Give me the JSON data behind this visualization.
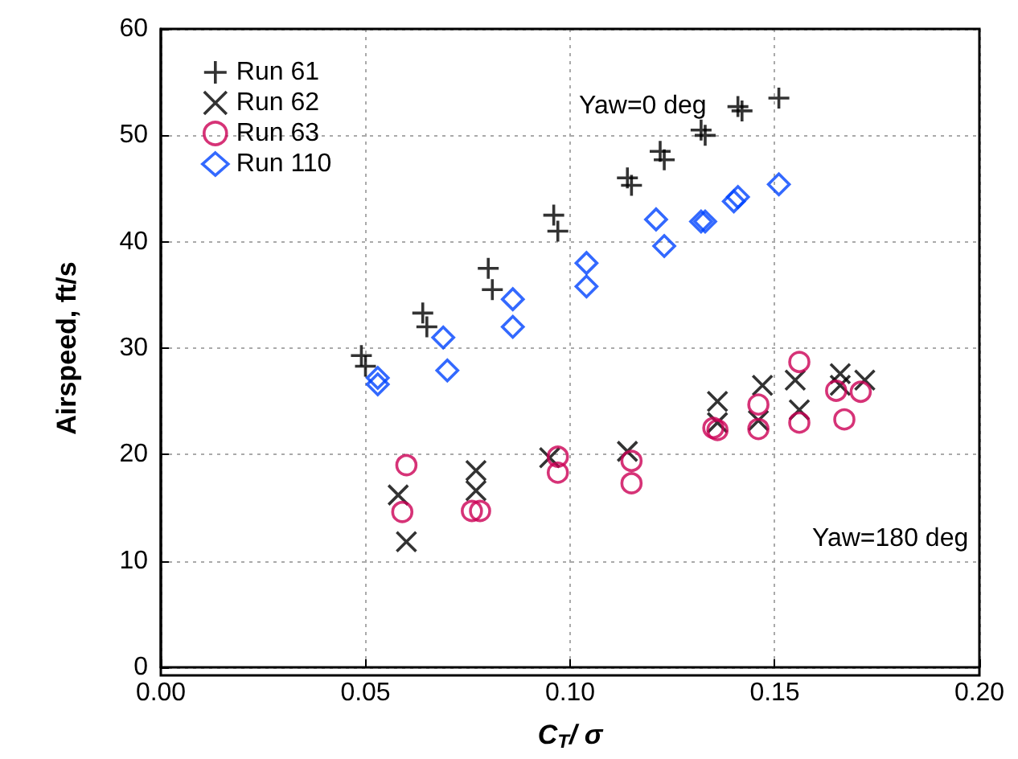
{
  "chart_data": {
    "type": "scatter",
    "xlabel": "C$_{T}$/ σ",
    "ylabel": "Airspeed, ft/s",
    "xlim": [
      0,
      0.2
    ],
    "xticks": [
      {
        "value": 0,
        "label": "0.00"
      },
      {
        "value": 0.05,
        "label": "0.05"
      },
      {
        "value": 0.1,
        "label": "0.10"
      },
      {
        "value": 0.15,
        "label": "0.15"
      },
      {
        "value": 0.2,
        "label": "0.20"
      }
    ],
    "ylim": [
      0,
      60
    ],
    "yticks": [
      0,
      10,
      20,
      30,
      40,
      50,
      60
    ],
    "grid": true,
    "legend": "top left",
    "annotations": [
      "Yaw=0 deg",
      "Yaw=180 deg"
    ],
    "series": [
      {
        "name": "Run 61",
        "color": "#000000",
        "marker": "plus",
        "x": [
          0.049,
          0.05,
          0.064,
          0.065,
          0.08,
          0.081,
          0.096,
          0.097,
          0.114,
          0.115,
          0.122,
          0.123,
          0.132,
          0.133,
          0.141,
          0.142,
          0.151
        ],
        "values": [
          29.3,
          28.3,
          33.3,
          32,
          37.5,
          35.5,
          42.5,
          41,
          46,
          45.3,
          48.5,
          47.7,
          50.5,
          50,
          52.7,
          52.3,
          53.5
        ]
      },
      {
        "name": "Run 62",
        "color": "#000000",
        "marker": "x",
        "x": [
          0.058,
          0.06,
          0.077,
          0.077,
          0.095,
          0.114,
          0.136,
          0.136,
          0.146,
          0.147,
          0.155,
          0.156,
          0.166,
          0.166,
          0.172
        ],
        "values": [
          16.2,
          11.8,
          18.5,
          16.6,
          19.7,
          20.3,
          25,
          23,
          23.2,
          26.5,
          27,
          24.2,
          27.6,
          26.5,
          27
        ]
      },
      {
        "name": "Run 63",
        "color": "#cc0055",
        "marker": "circle",
        "x": [
          0.06,
          0.059,
          0.076,
          0.078,
          0.097,
          0.097,
          0.115,
          0.115,
          0.135,
          0.136,
          0.146,
          0.146,
          0.156,
          0.156,
          0.165,
          0.167,
          0.171
        ],
        "values": [
          19,
          14.6,
          14.7,
          14.7,
          19.8,
          18.3,
          19.4,
          17.3,
          22.5,
          22.3,
          24.7,
          22.4,
          28.7,
          23,
          26,
          23.3,
          25.9
        ]
      },
      {
        "name": "Run 110",
        "color": "#0044ff",
        "marker": "diamond",
        "x": [
          0.053,
          0.053,
          0.069,
          0.07,
          0.086,
          0.086,
          0.104,
          0.104,
          0.121,
          0.123,
          0.132,
          0.133,
          0.14,
          0.141,
          0.151
        ],
        "values": [
          27.2,
          26.6,
          31,
          27.9,
          34.6,
          32,
          38,
          35.8,
          42.1,
          39.6,
          41.9,
          41.9,
          43.8,
          44.2,
          45.4
        ]
      }
    ]
  }
}
